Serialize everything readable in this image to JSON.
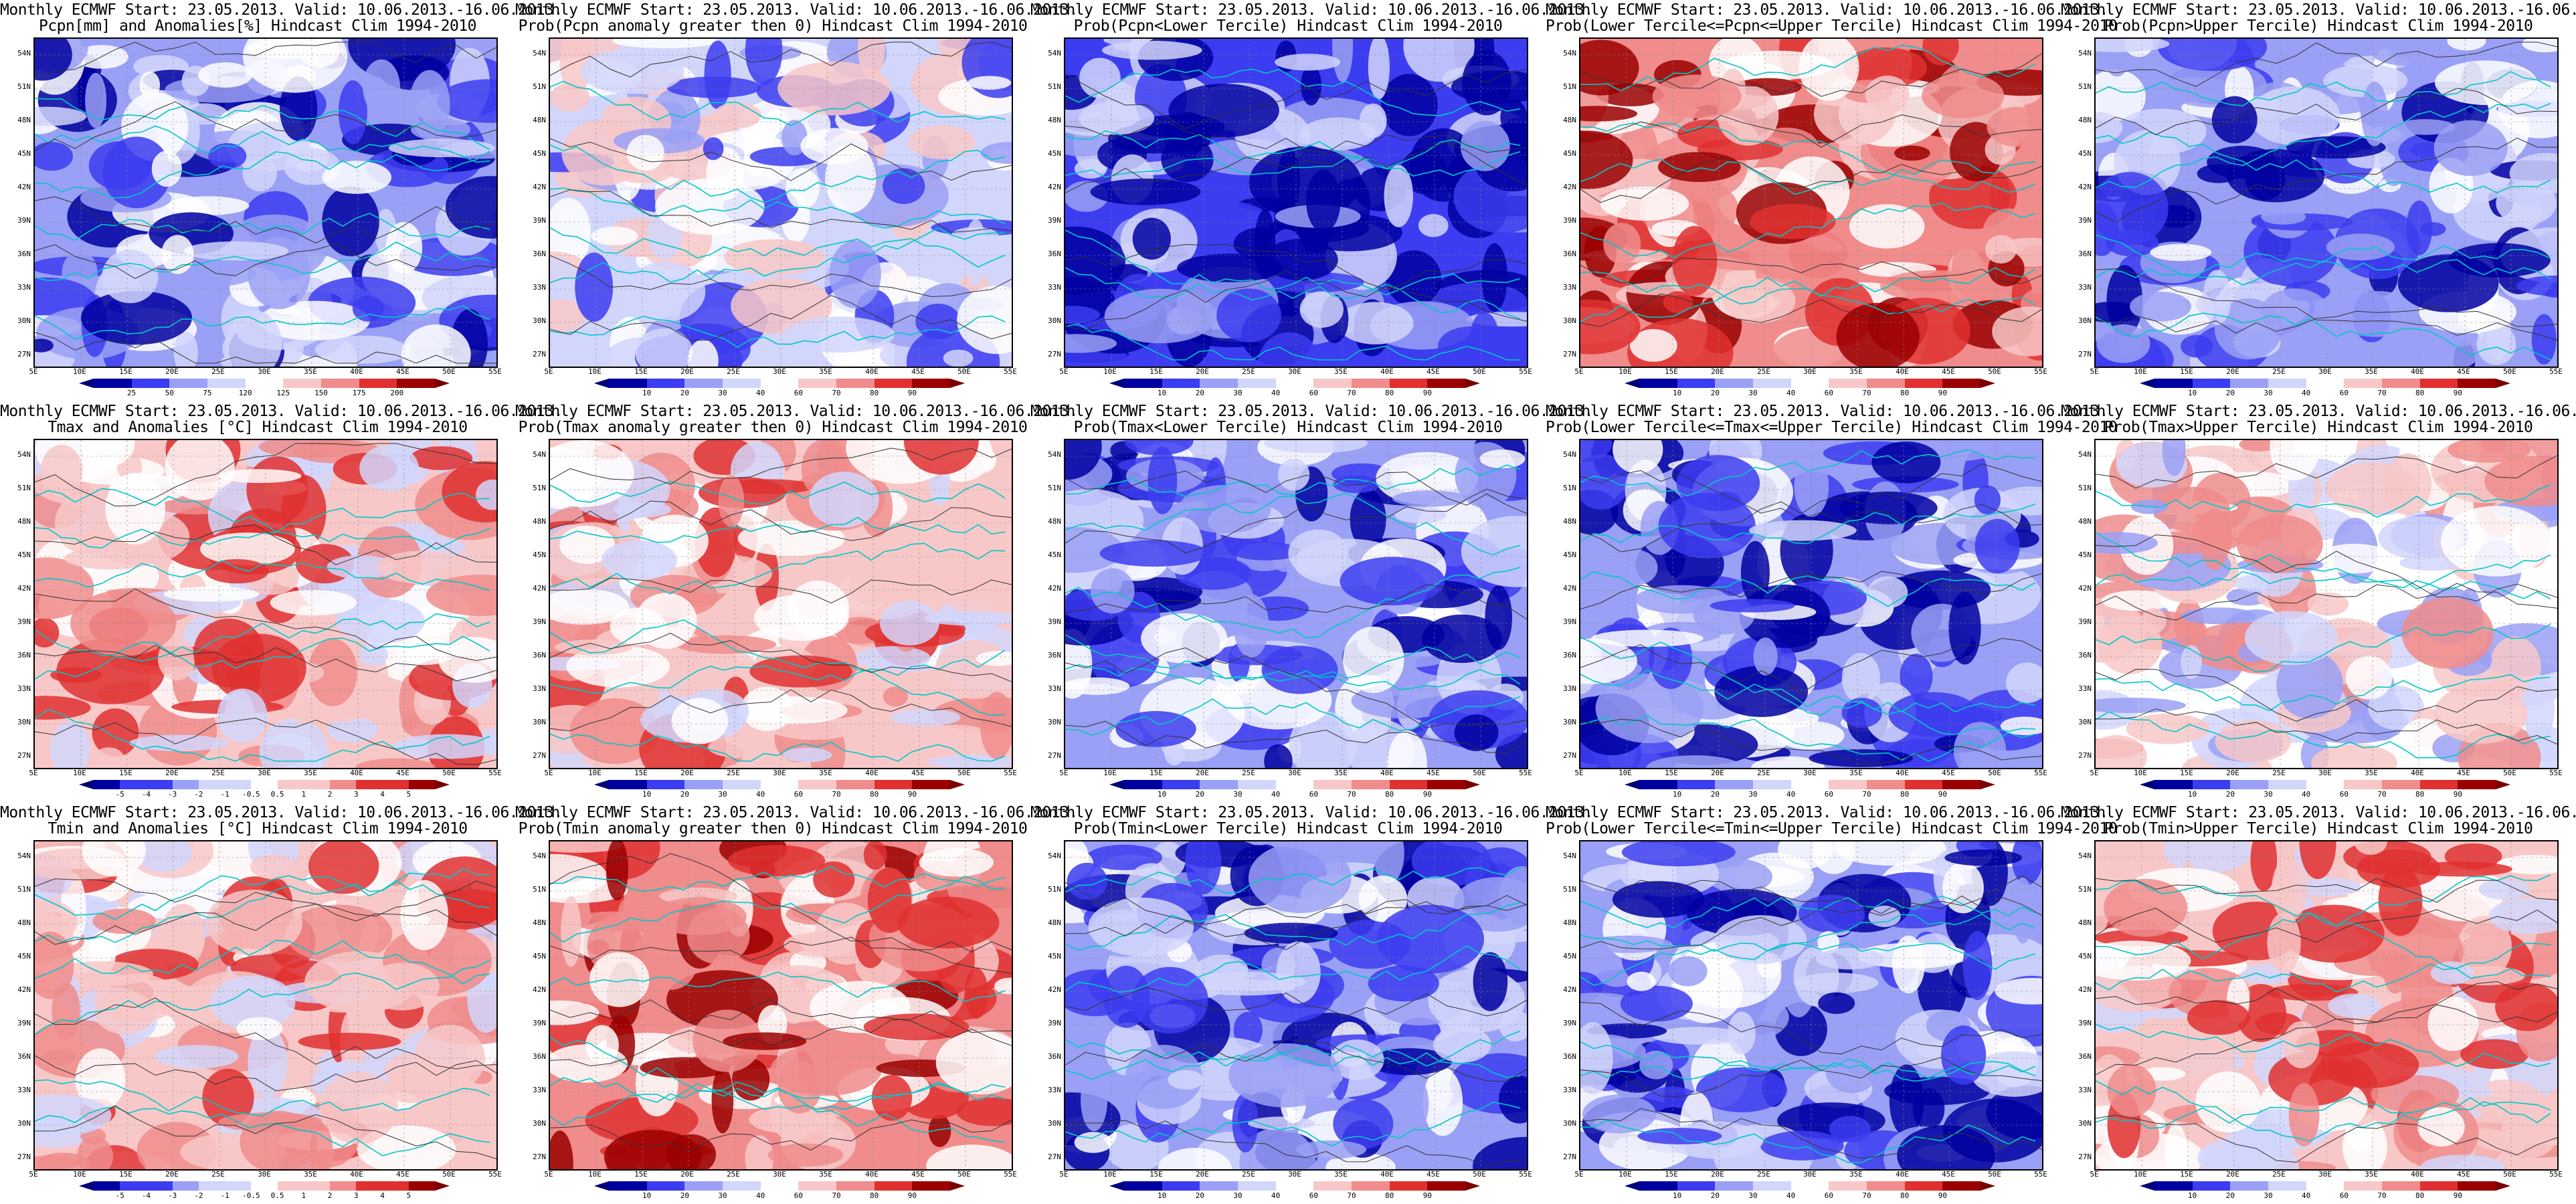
{
  "title_line1": "Monthly ECMWF Start: 23.05.2013. Valid: 10.06.2013.-16.06.2013.",
  "rows": [
    {
      "panels": [
        {
          "title2": "Pcpn[mm] and Anomalies[%] Hindcast Clim 1994-2010",
          "scale": "pcpn"
        },
        {
          "title2": "Prob(Pcpn anomaly greater then 0) Hindcast Clim 1994-2010",
          "scale": "prob"
        },
        {
          "title2": "Prob(Pcpn<Lower Tercile) Hindcast Clim 1994-2010",
          "scale": "prob"
        },
        {
          "title2": "Prob(Lower Tercile<=Pcpn<=Upper Tercile) Hindcast Clim 1994-2010",
          "scale": "prob"
        },
        {
          "title2": "Prob(Pcpn>Upper Tercile) Hindcast Clim 1994-2010",
          "scale": "prob"
        }
      ]
    },
    {
      "panels": [
        {
          "title2": "Tmax and Anomalies [°C] Hindcast Clim 1994-2010",
          "scale": "temp"
        },
        {
          "title2": "Prob(Tmax anomaly greater then 0) Hindcast Clim 1994-2010",
          "scale": "prob"
        },
        {
          "title2": "Prob(Tmax<Lower Tercile) Hindcast Clim 1994-2010",
          "scale": "prob"
        },
        {
          "title2": "Prob(Lower Tercile<=Tmax<=Upper Tercile) Hindcast Clim 1994-2010",
          "scale": "prob"
        },
        {
          "title2": "Prob(Tmax>Upper Tercile) Hindcast Clim 1994-2010",
          "scale": "prob"
        }
      ]
    },
    {
      "panels": [
        {
          "title2": "Tmin and Anomalies [°C] Hindcast Clim 1994-2010",
          "scale": "temp"
        },
        {
          "title2": "Prob(Tmin anomaly greater then 0) Hindcast Clim 1994-2010",
          "scale": "prob"
        },
        {
          "title2": "Prob(Tmin<Lower Tercile) Hindcast Clim 1994-2010",
          "scale": "prob"
        },
        {
          "title2": "Prob(Lower Tercile<=Tmin<=Upper Tercile) Hindcast Clim 1994-2010",
          "scale": "prob"
        },
        {
          "title2": "Prob(Tmin>Upper Tercile) Hindcast Clim 1994-2010",
          "scale": "prob"
        }
      ]
    }
  ],
  "lat_labels": [
    "54N",
    "51N",
    "48N",
    "45N",
    "42N",
    "39N",
    "36N",
    "33N",
    "30N",
    "27N"
  ],
  "lon_labels": [
    "5E",
    "10E",
    "15E",
    "20E",
    "25E",
    "30E",
    "35E",
    "40E",
    "45E",
    "50E",
    "55E"
  ],
  "colorbars": {
    "prob": [
      "10",
      "20",
      "30",
      "40",
      "60",
      "70",
      "80",
      "90"
    ],
    "pcpn": [
      "25",
      "50",
      "75",
      "120",
      "125",
      "150",
      "175",
      "200"
    ],
    "temp": [
      "-5",
      "-4",
      "-3",
      "-2",
      "-1",
      "-0.5",
      "0.5",
      "1",
      "2",
      "3",
      "4",
      "5"
    ]
  },
  "colors": {
    "deep_blue": "#0000a0",
    "mid_blue": "#3c3cf0",
    "light_blue": "#9aa0f5",
    "pale_blue": "#d2d6fb",
    "white": "#ffffff",
    "pale_red": "#f8c8c8",
    "light_red": "#f08c8c",
    "mid_red": "#e03030",
    "deep_red": "#9a0000",
    "coast": "#00c8c8",
    "contour": "#333333"
  }
}
